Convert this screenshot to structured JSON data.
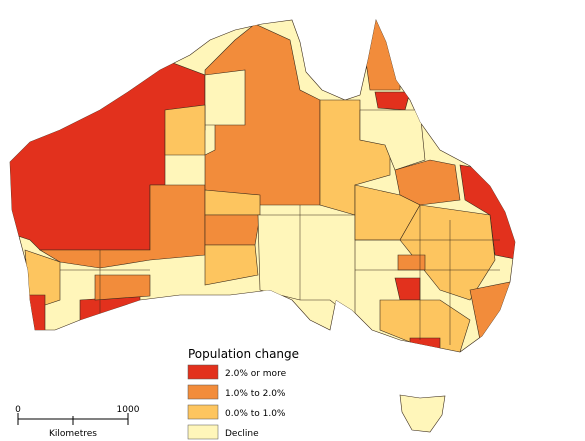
{
  "legend": {
    "title": "Population change",
    "items": [
      {
        "label": "2.0% or more",
        "color": "#e2311d"
      },
      {
        "label": "1.0% to 2.0%",
        "color": "#f28c3b"
      },
      {
        "label": "0.0% to 1.0%",
        "color": "#fdc55f"
      },
      {
        "label": "Decline",
        "color": "#fff6ba"
      }
    ]
  },
  "scale_bar": {
    "labels": [
      "0",
      "1000"
    ],
    "unit": "Kilometres"
  }
}
